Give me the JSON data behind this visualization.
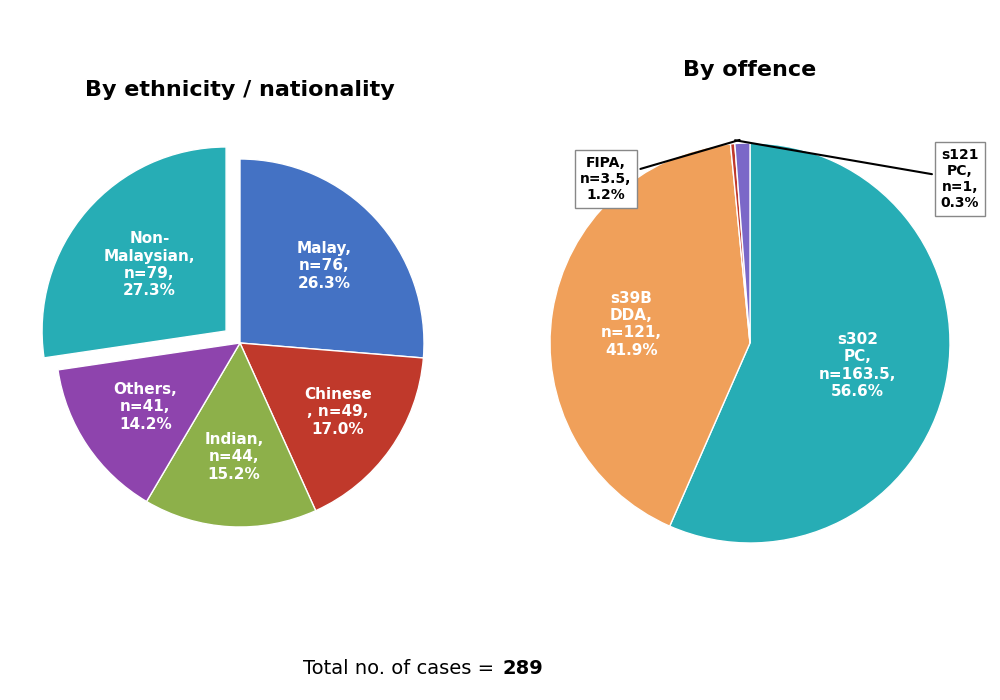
{
  "left_title": "By ethnicity / nationality",
  "right_title": "By offence",
  "footer": "Total no. of cases = ",
  "footer_bold": "289",
  "ethnicity_labels": [
    "Malay,\nn=76,\n26.3%",
    "Chinese\n, n=49,\n17.0%",
    "Indian,\nn=44,\n15.2%",
    "Others,\nn=41,\n14.2%",
    "Non-\nMalaysian,\nn=79,\n27.3%"
  ],
  "ethnicity_values": [
    76,
    49,
    44,
    41,
    79
  ],
  "ethnicity_colors": [
    "#4472C4",
    "#C0392B",
    "#8DB04A",
    "#8E44AD",
    "#27ADB5"
  ],
  "ethnicity_explode": [
    0,
    0,
    0,
    0,
    0.1
  ],
  "ethnicity_startangle": 90,
  "offence_labels": [
    "s302\nPC,\nn=163.5,\n56.6%",
    "s39B\nDDA,\nn=121,\n41.9%",
    "s121\nPC,\nn=1,\n0.3%",
    "FIPA,\nn=3.5,\n1.2%"
  ],
  "offence_values": [
    163.5,
    121,
    1,
    3.5
  ],
  "offence_colors": [
    "#27ADB5",
    "#F0A05A",
    "#C0392B",
    "#7B68C8"
  ],
  "offence_startangle": 90,
  "title_fontsize": 16,
  "label_fontsize": 11,
  "footer_fontsize": 14
}
